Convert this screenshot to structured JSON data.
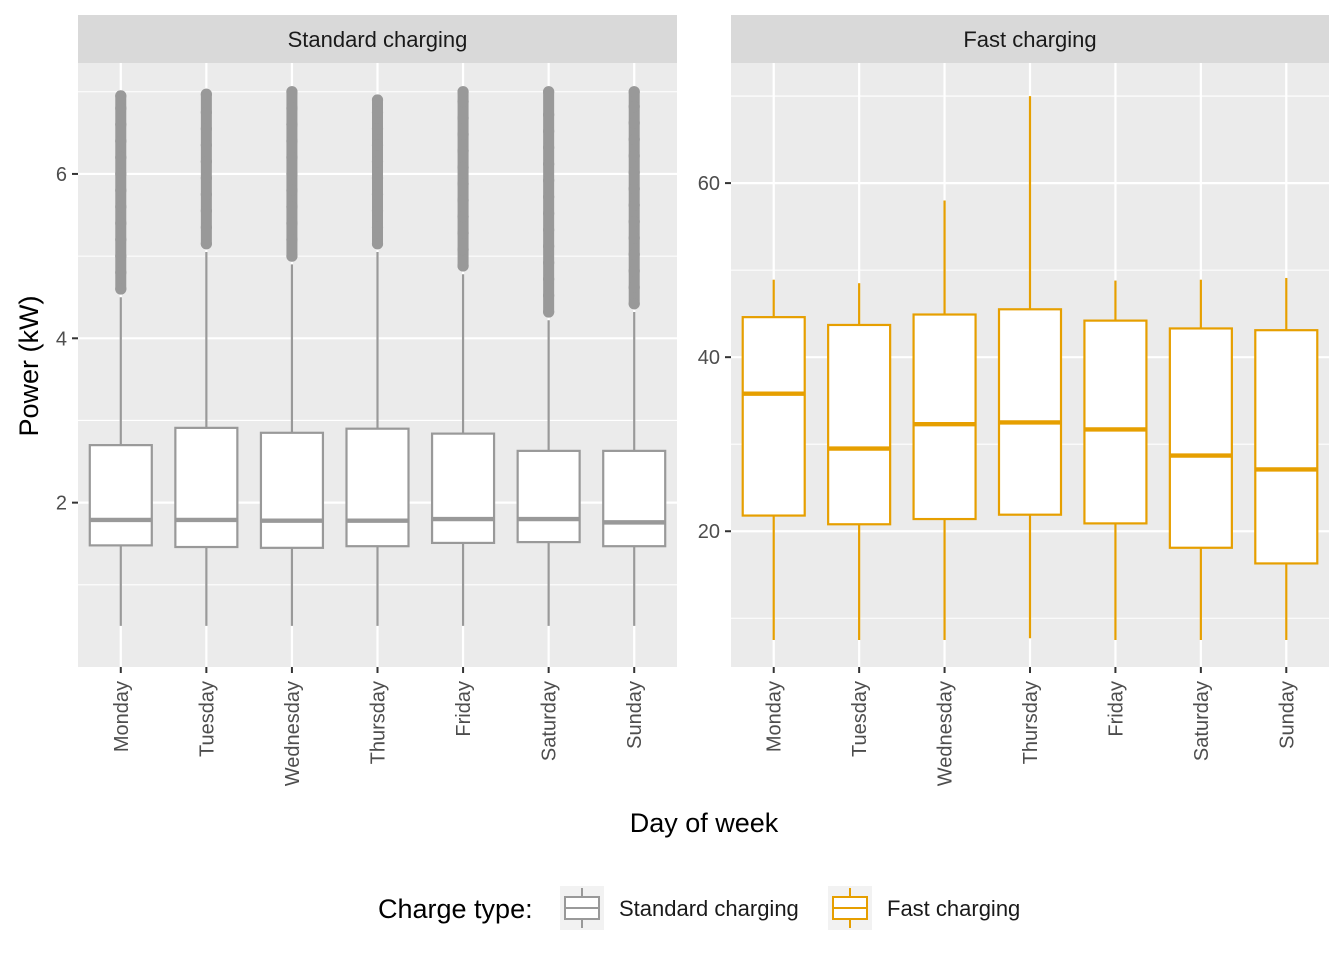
{
  "chart_data": {
    "type": "box",
    "xlabel": "Day of week",
    "ylabel": "Power (kW)",
    "categories": [
      "Monday",
      "Tuesday",
      "Wednesday",
      "Thursday",
      "Friday",
      "Saturday",
      "Sunday"
    ],
    "legend": {
      "title": "Charge type:",
      "position": "bottom",
      "entries": [
        {
          "label": "Standard charging",
          "color": "#999999"
        },
        {
          "label": "Fast charging",
          "color": "#E69F00"
        }
      ]
    },
    "panels": [
      {
        "title": "Standard charging",
        "color": "#999999",
        "ylim": [
          0.0,
          7.35
        ],
        "yticks": [
          2,
          4,
          6
        ],
        "grid": true,
        "boxes": [
          {
            "day": "Monday",
            "min": 0.5,
            "q1": 1.48,
            "median": 1.79,
            "q3": 2.7,
            "max": 4.5,
            "outliers": [
              4.6,
              4.8,
              5.0,
              5.2,
              5.4,
              5.6,
              5.8,
              6.0,
              6.2,
              6.4,
              6.6,
              6.8,
              6.95
            ]
          },
          {
            "day": "Tuesday",
            "min": 0.5,
            "q1": 1.46,
            "median": 1.79,
            "q3": 2.91,
            "max": 5.05,
            "outliers": [
              5.15,
              5.35,
              5.55,
              5.75,
              5.95,
              6.15,
              6.35,
              6.55,
              6.75,
              6.97
            ]
          },
          {
            "day": "Wednesday",
            "min": 0.5,
            "q1": 1.45,
            "median": 1.78,
            "q3": 2.85,
            "max": 4.9,
            "outliers": [
              5.0,
              5.2,
              5.4,
              5.6,
              5.8,
              6.0,
              6.2,
              6.4,
              6.6,
              6.8,
              7.0
            ]
          },
          {
            "day": "Thursday",
            "min": 0.5,
            "q1": 1.47,
            "median": 1.78,
            "q3": 2.9,
            "max": 5.05,
            "outliers": [
              5.15,
              5.35,
              5.55,
              5.75,
              5.95,
              6.15,
              6.35,
              6.55,
              6.75,
              6.9
            ]
          },
          {
            "day": "Friday",
            "min": 0.5,
            "q1": 1.51,
            "median": 1.8,
            "q3": 2.84,
            "max": 4.78,
            "outliers": [
              4.88,
              5.08,
              5.28,
              5.48,
              5.68,
              5.88,
              6.08,
              6.28,
              6.48,
              6.68,
              6.88,
              7.0
            ]
          },
          {
            "day": "Saturday",
            "min": 0.5,
            "q1": 1.52,
            "median": 1.8,
            "q3": 2.63,
            "max": 4.22,
            "outliers": [
              4.32,
              4.52,
              4.72,
              4.92,
              5.12,
              5.32,
              5.52,
              5.72,
              5.92,
              6.12,
              6.32,
              6.52,
              6.72,
              7.0
            ]
          },
          {
            "day": "Sunday",
            "min": 0.5,
            "q1": 1.47,
            "median": 1.76,
            "q3": 2.63,
            "max": 4.32,
            "outliers": [
              4.42,
              4.62,
              4.82,
              5.02,
              5.22,
              5.42,
              5.62,
              5.82,
              6.02,
              6.22,
              6.42,
              6.62,
              6.82,
              7.0
            ]
          }
        ]
      },
      {
        "title": "Fast charging",
        "color": "#E69F00",
        "ylim": [
          4.4,
          73.8
        ],
        "yticks": [
          20,
          40,
          60
        ],
        "grid": true,
        "boxes": [
          {
            "day": "Monday",
            "min": 7.5,
            "q1": 21.8,
            "median": 35.8,
            "q3": 44.6,
            "max": 48.9
          },
          {
            "day": "Tuesday",
            "min": 7.5,
            "q1": 20.8,
            "median": 29.5,
            "q3": 43.7,
            "max": 48.5
          },
          {
            "day": "Wednesday",
            "min": 7.5,
            "q1": 21.4,
            "median": 32.3,
            "q3": 44.9,
            "max": 58.0
          },
          {
            "day": "Thursday",
            "min": 7.7,
            "q1": 21.9,
            "median": 32.5,
            "q3": 45.5,
            "max": 70.0
          },
          {
            "day": "Friday",
            "min": 7.5,
            "q1": 20.9,
            "median": 31.7,
            "q3": 44.2,
            "max": 48.8
          },
          {
            "day": "Saturday",
            "min": 7.5,
            "q1": 18.1,
            "median": 28.7,
            "q3": 43.3,
            "max": 48.9
          },
          {
            "day": "Sunday",
            "min": 7.5,
            "q1": 16.3,
            "median": 27.1,
            "q3": 43.1,
            "max": 49.1
          }
        ]
      }
    ]
  }
}
